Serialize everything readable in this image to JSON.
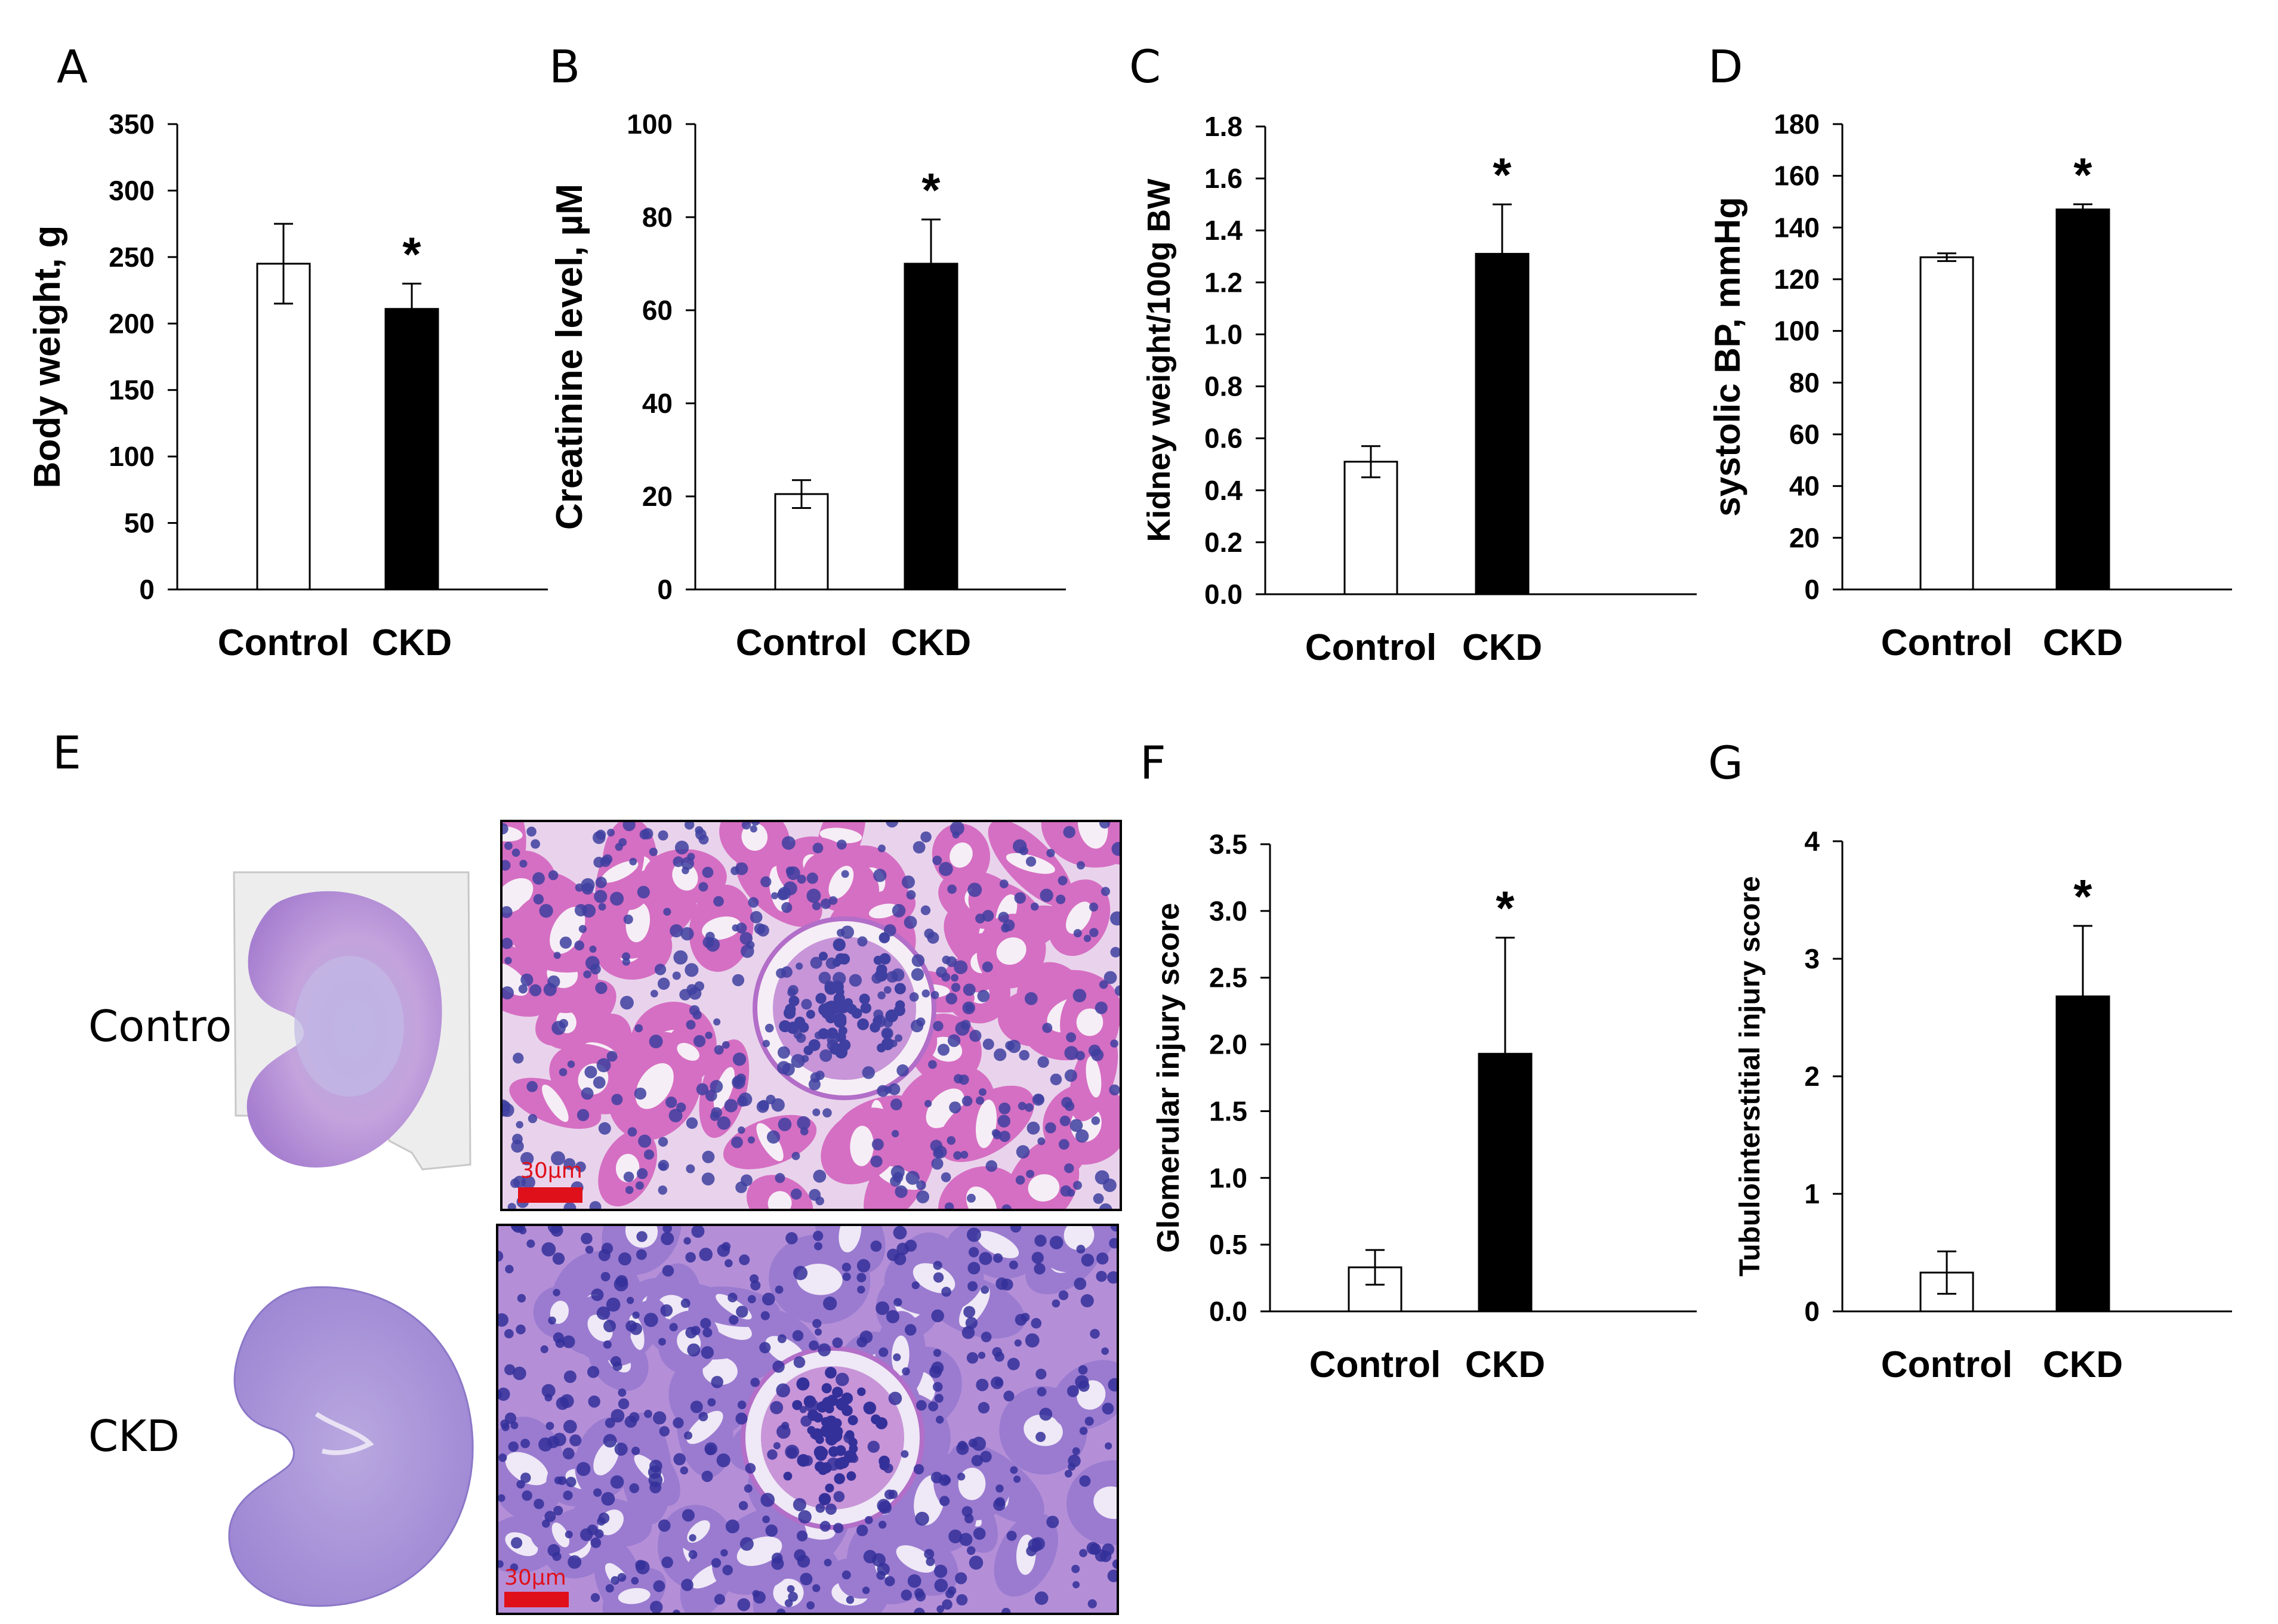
{
  "colors": {
    "control_bar": "#ffffff",
    "ckd_bar": "#000000",
    "scale_bar": "#e0101a",
    "stain_pink": "#d272c0",
    "stain_purple": "#6e4fb8"
  },
  "chart_data": [
    {
      "panel": "A",
      "type": "bar",
      "categories": [
        "Control",
        "CKD"
      ],
      "values": [
        245,
        211
      ],
      "errors": [
        30,
        19
      ],
      "ylabel": "Body weight, g",
      "ylim": [
        0,
        350
      ],
      "yticks": [
        0,
        50,
        100,
        150,
        200,
        250,
        300,
        350
      ],
      "ytick_labels": [
        "0",
        "50",
        "100",
        "150",
        "200",
        "250",
        "300",
        "350"
      ],
      "significance": [
        "",
        "*"
      ],
      "grid": false
    },
    {
      "panel": "B",
      "type": "bar",
      "categories": [
        "Control",
        "CKD"
      ],
      "values": [
        20.5,
        70
      ],
      "errors": [
        3,
        9.5
      ],
      "ylabel": "Creatinine level, µM",
      "ylim": [
        0,
        100
      ],
      "yticks": [
        0,
        20,
        40,
        60,
        80,
        100
      ],
      "ytick_labels": [
        "0",
        "20",
        "40",
        "60",
        "80",
        "100"
      ],
      "significance": [
        "",
        "*"
      ],
      "grid": false
    },
    {
      "panel": "C",
      "type": "bar",
      "categories": [
        "Control",
        "CKD"
      ],
      "values": [
        0.51,
        1.31
      ],
      "errors": [
        0.06,
        0.19
      ],
      "ylabel": "Kidney weight/100g BW",
      "ylim": [
        0,
        1.8
      ],
      "yticks": [
        0,
        0.2,
        0.4,
        0.6,
        0.8,
        1.0,
        1.2,
        1.4,
        1.6,
        1.8
      ],
      "ytick_labels": [
        "0.0",
        "0.2",
        "0.4",
        "0.6",
        "0.8",
        "1.0",
        "1.2",
        "1.4",
        "1.6",
        "1.8"
      ],
      "significance": [
        "",
        "*"
      ],
      "grid": false
    },
    {
      "panel": "D",
      "type": "bar",
      "categories": [
        "Control",
        "CKD"
      ],
      "values": [
        128.5,
        147
      ],
      "errors": [
        1.5,
        2
      ],
      "ylabel": "systolic BP, mmHg",
      "ylim": [
        0,
        180
      ],
      "yticks": [
        0,
        20,
        40,
        60,
        80,
        100,
        120,
        140,
        160,
        180
      ],
      "ytick_labels": [
        "0",
        "20",
        "40",
        "60",
        "80",
        "100",
        "120",
        "140",
        "160",
        "180"
      ],
      "significance": [
        "",
        "*"
      ],
      "grid": false
    },
    {
      "panel": "F",
      "type": "bar",
      "categories": [
        "Control",
        "CKD"
      ],
      "values": [
        0.33,
        1.93
      ],
      "errors": [
        0.13,
        0.87
      ],
      "ylabel": "Glomerular injury score",
      "ylim": [
        0,
        3.5
      ],
      "yticks": [
        0,
        0.5,
        1.0,
        1.5,
        2.0,
        2.5,
        3.0,
        3.5
      ],
      "ytick_labels": [
        "0.0",
        "0.5",
        "1.0",
        "1.5",
        "2.0",
        "2.5",
        "3.0",
        "3.5"
      ],
      "significance": [
        "",
        "*"
      ],
      "grid": false
    },
    {
      "panel": "G",
      "type": "bar",
      "categories": [
        "Control",
        "CKD"
      ],
      "values": [
        0.33,
        2.68
      ],
      "errors": [
        0.18,
        0.6
      ],
      "ylabel": "Tubulointerstitial injury score",
      "ylim": [
        0,
        4
      ],
      "yticks": [
        0,
        1,
        2,
        3,
        4
      ],
      "ytick_labels": [
        "0",
        "1",
        "2",
        "3",
        "4"
      ],
      "significance": [
        "",
        "*"
      ],
      "grid": false
    }
  ],
  "histology": {
    "panel": "E",
    "rows": [
      {
        "label": "Control",
        "scale_label": "30µm"
      },
      {
        "label": "CKD",
        "scale_label": "30µm"
      }
    ]
  }
}
